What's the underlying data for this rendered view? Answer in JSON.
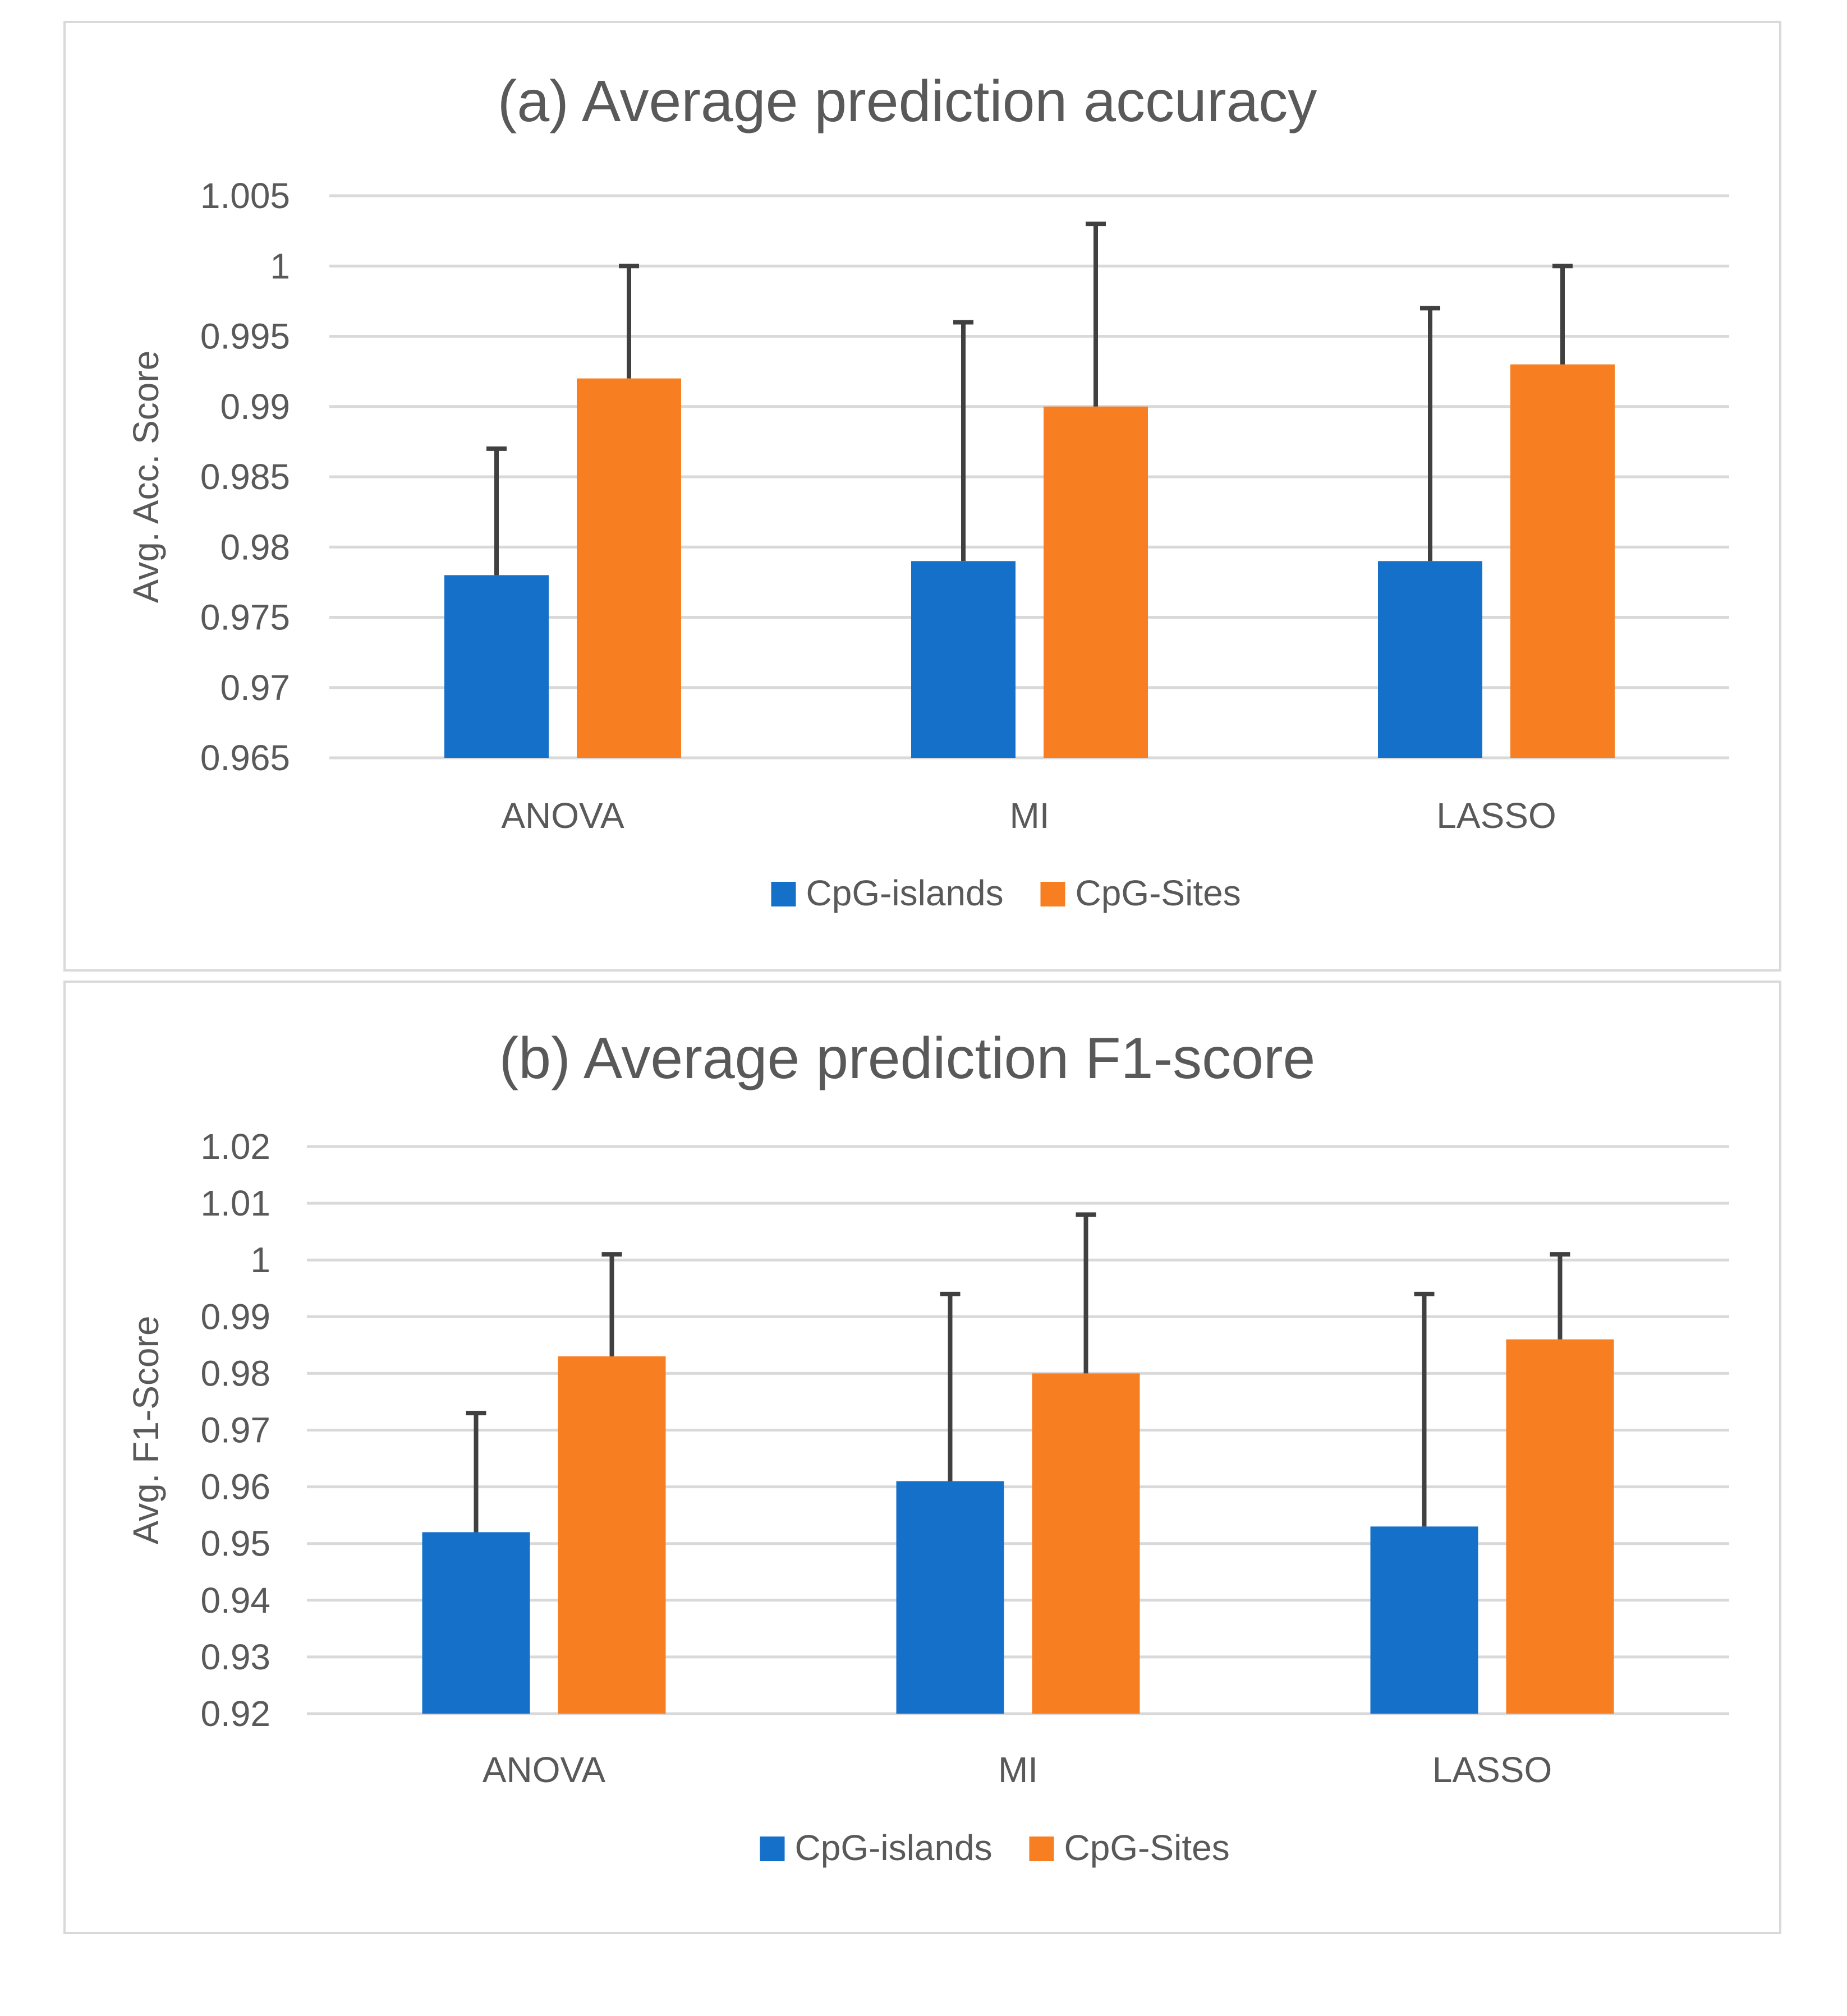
{
  "colors": {
    "CpG-islands": "#1570c9",
    "CpG-Sites": "#f77f22",
    "errorbar": "#404040",
    "grid": "#d9d9d9",
    "text": "#595959"
  },
  "chart_data": [
    {
      "type": "bar",
      "title": "(a) Average prediction accuracy",
      "xlabel": "",
      "ylabel": "Avg. Acc. Score",
      "ylim": [
        0.965,
        1.005
      ],
      "yticks": [
        0.965,
        0.97,
        0.975,
        0.98,
        0.985,
        0.99,
        0.995,
        1,
        1.005
      ],
      "yticklabels": [
        "0.965",
        "0.97",
        "0.975",
        "0.98",
        "0.985",
        "0.99",
        "0.995",
        "1",
        "1.005"
      ],
      "categories": [
        "ANOVA",
        "MI",
        "LASSO"
      ],
      "series": [
        {
          "name": "CpG-islands",
          "values": [
            0.978,
            0.979,
            0.979
          ],
          "error_upper": [
            0.987,
            0.996,
            0.997
          ]
        },
        {
          "name": "CpG-Sites",
          "values": [
            0.992,
            0.99,
            0.993
          ],
          "error_upper": [
            1.0,
            1.003,
            1.0
          ]
        }
      ],
      "legend": "bottom",
      "grid": true
    },
    {
      "type": "bar",
      "title": "(b) Average prediction F1-score",
      "xlabel": "",
      "ylabel": "Avg. F1-Score",
      "ylim": [
        0.92,
        1.02
      ],
      "yticks": [
        0.92,
        0.93,
        0.94,
        0.95,
        0.96,
        0.97,
        0.98,
        0.99,
        1,
        1.01,
        1.02
      ],
      "yticklabels": [
        "0.92",
        "0.93",
        "0.94",
        "0.95",
        "0.96",
        "0.97",
        "0.98",
        "0.99",
        "1",
        "1.01",
        "1.02"
      ],
      "categories": [
        "ANOVA",
        "MI",
        "LASSO"
      ],
      "series": [
        {
          "name": "CpG-islands",
          "values": [
            0.952,
            0.961,
            0.953
          ],
          "error_upper": [
            0.973,
            0.994,
            0.994
          ]
        },
        {
          "name": "CpG-Sites",
          "values": [
            0.983,
            0.98,
            0.986
          ],
          "error_upper": [
            1.001,
            1.008,
            1.001
          ]
        }
      ],
      "legend": "bottom",
      "grid": true
    }
  ]
}
